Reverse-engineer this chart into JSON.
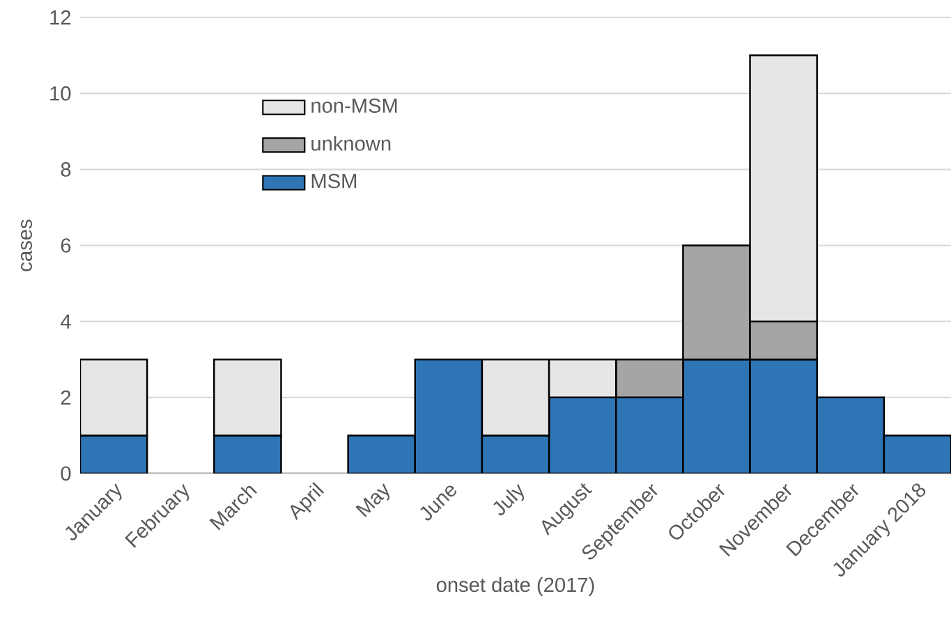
{
  "chart_data": {
    "type": "bar",
    "stacked": true,
    "xlabel": "onset date (2017)",
    "ylabel": "cases",
    "categories": [
      "January",
      "February",
      "March",
      "April",
      "May",
      "June",
      "July",
      "August",
      "September",
      "October",
      "November",
      "December",
      "January 2018"
    ],
    "series": [
      {
        "name": "MSM",
        "color": "#2e75b6",
        "values": [
          1,
          null,
          1,
          null,
          1,
          3,
          1,
          2,
          2,
          3,
          3,
          2,
          1
        ]
      },
      {
        "name": "unknown",
        "color": "#a5a5a5",
        "values": [
          null,
          null,
          null,
          null,
          null,
          null,
          null,
          null,
          1,
          3,
          1,
          null,
          null
        ]
      },
      {
        "name": "non-MSM",
        "color": "#e7e6e6",
        "values": [
          2,
          null,
          2,
          null,
          null,
          null,
          2,
          1,
          null,
          null,
          7,
          null,
          null
        ]
      }
    ],
    "ylim": [
      0,
      12
    ],
    "yticks": [
      0,
      2,
      4,
      6,
      8,
      10,
      12
    ],
    "grid": "y",
    "legend": "top left"
  }
}
